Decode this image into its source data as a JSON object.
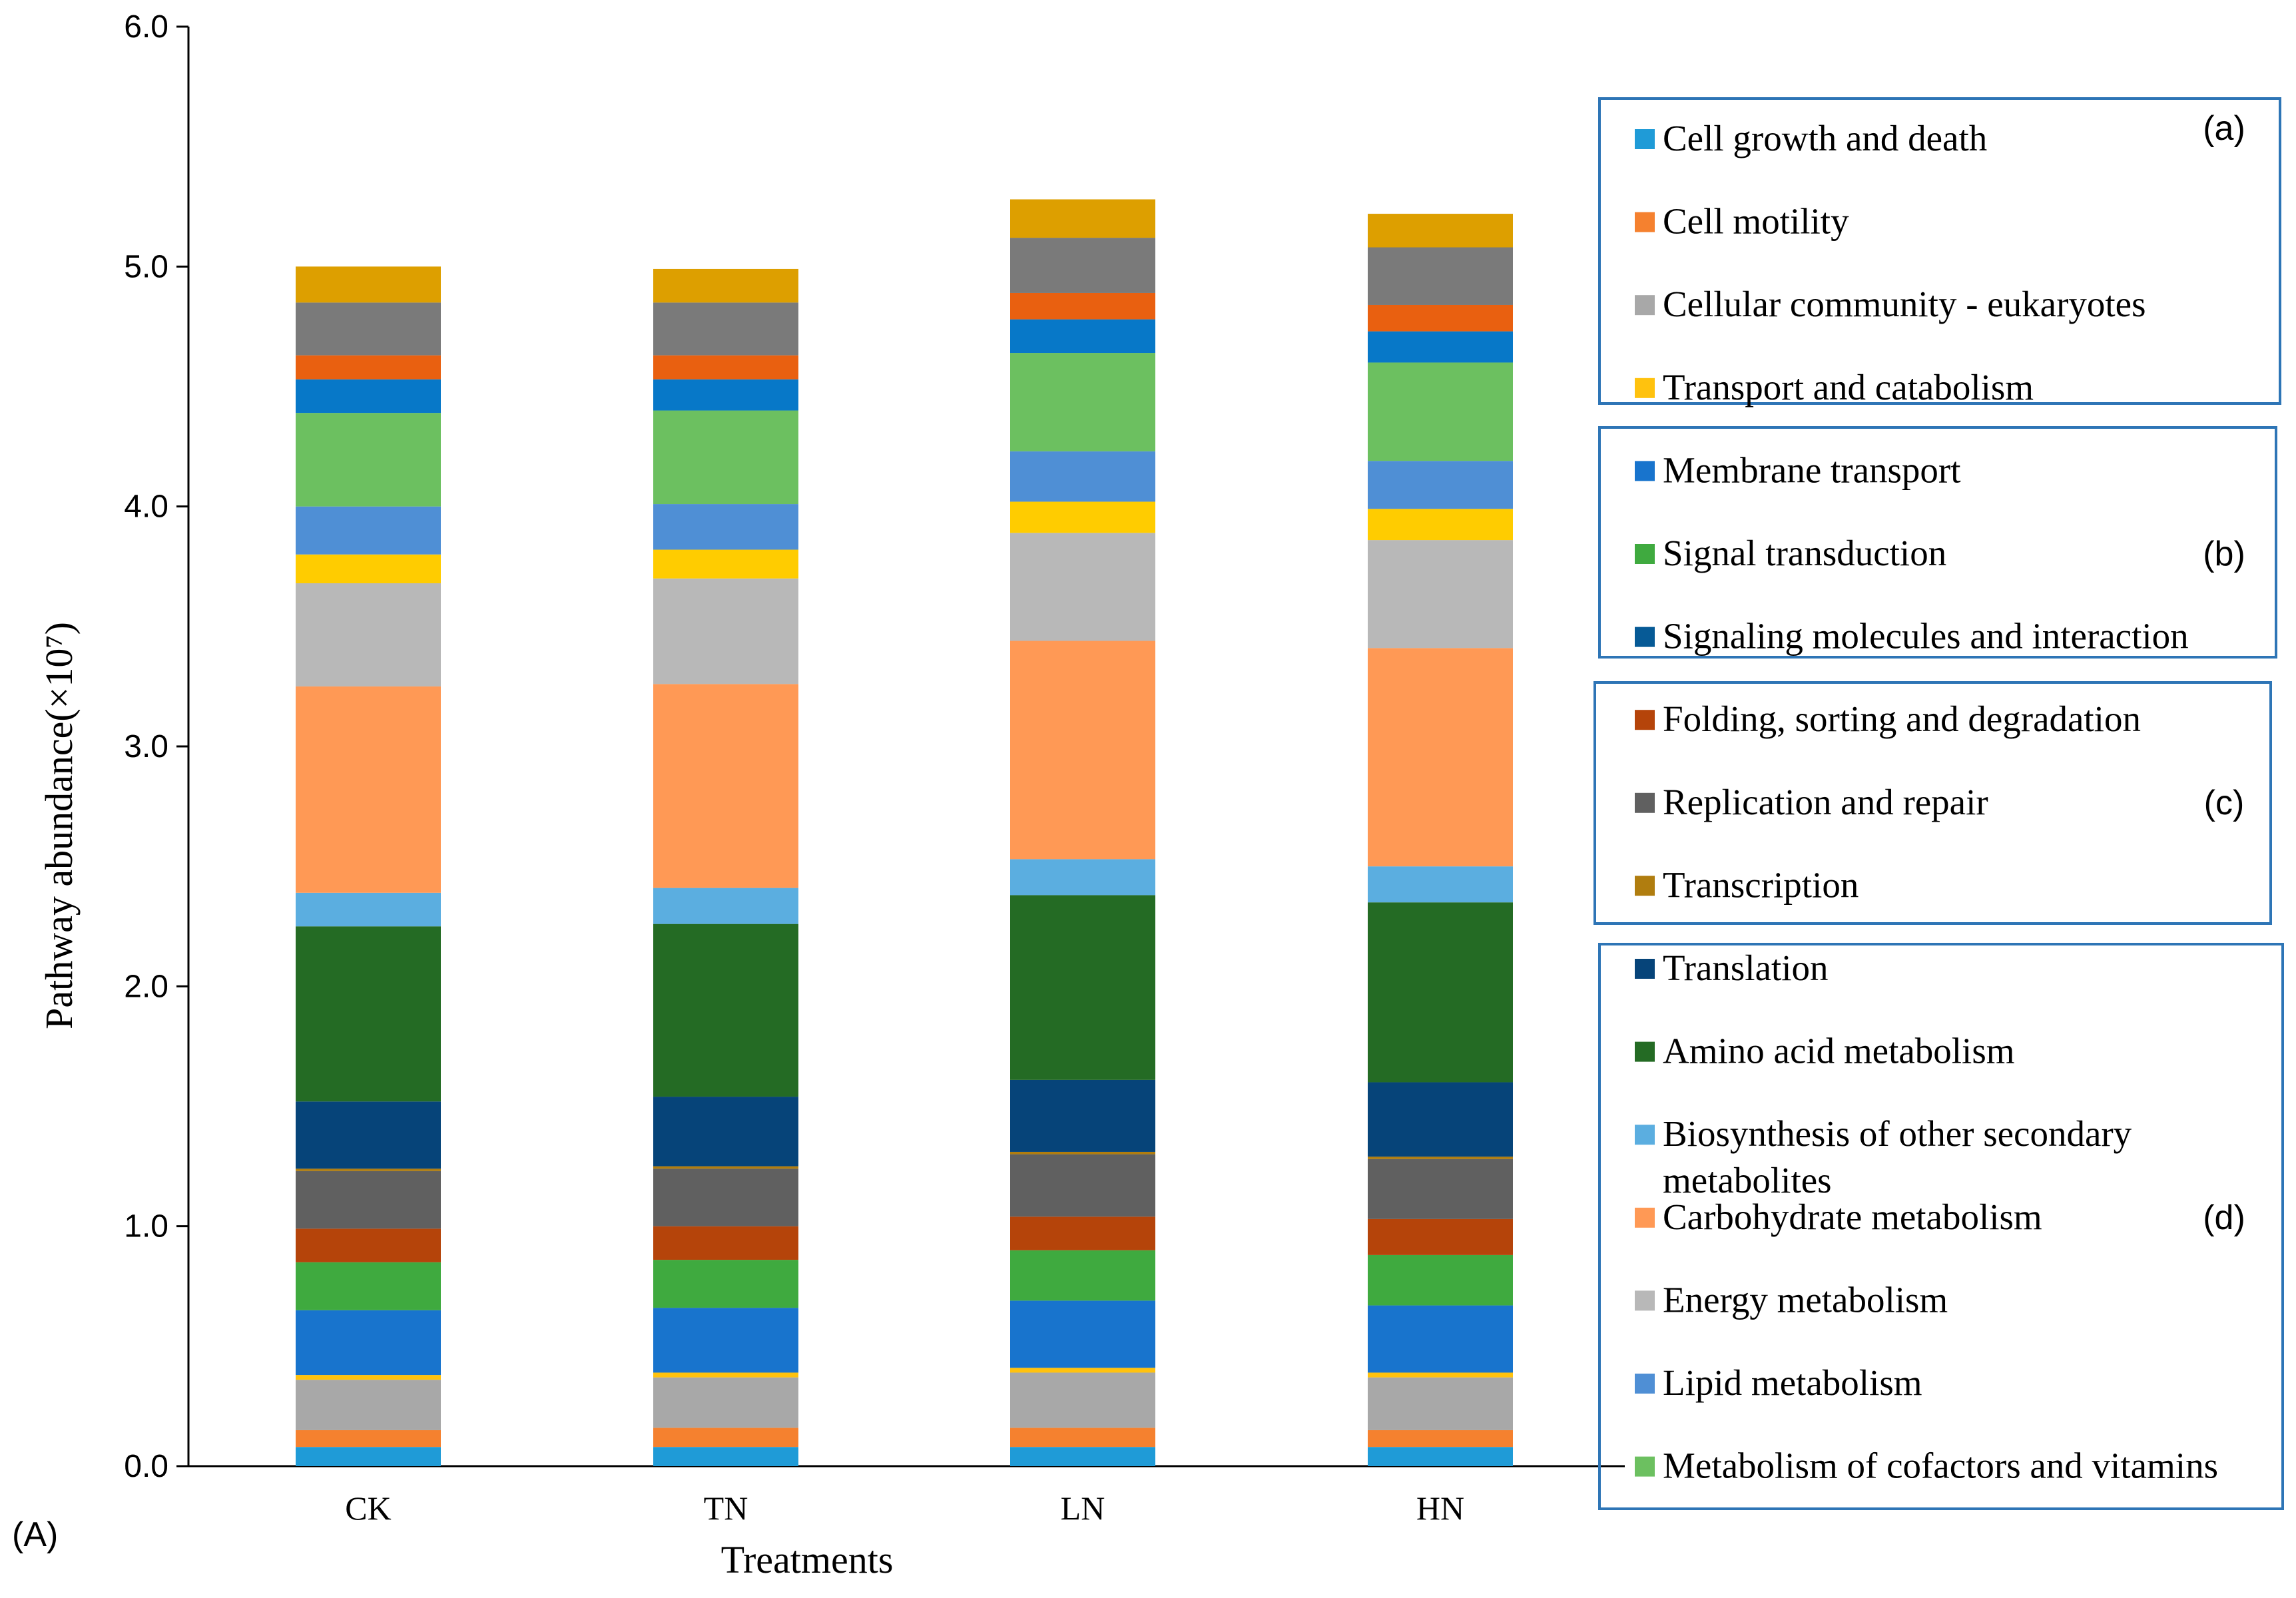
{
  "chart_data": {
    "type": "stacked-bar",
    "panel_label": "(A)",
    "xlabel": "Treatments",
    "ylabel": "Pathway  abundance(×10⁷)",
    "ylim": [
      0,
      6
    ],
    "yticks": [
      "0.0",
      "1.0",
      "2.0",
      "3.0",
      "4.0",
      "5.0",
      "6.0"
    ],
    "categories": [
      "CK",
      "TN",
      "LN",
      "HN"
    ],
    "series": [
      {
        "name": "Cell growth and death",
        "color": "#1F9BD7",
        "values": [
          0.08,
          0.08,
          0.08,
          0.08
        ]
      },
      {
        "name": "Cell motility",
        "color": "#F5812F",
        "values": [
          0.07,
          0.08,
          0.08,
          0.07
        ]
      },
      {
        "name": "Cellular community - eukaryotes",
        "color": "#A8A8A8",
        "values": [
          0.21,
          0.21,
          0.23,
          0.22
        ]
      },
      {
        "name": "Transport and catabolism",
        "color": "#FFC20E",
        "values": [
          0.02,
          0.02,
          0.02,
          0.02
        ]
      },
      {
        "name": "Membrane transport",
        "color": "#1874CD",
        "values": [
          0.27,
          0.27,
          0.28,
          0.28
        ]
      },
      {
        "name": "Signal transduction",
        "color": "#3FAA3F",
        "values": [
          0.2,
          0.2,
          0.21,
          0.21
        ]
      },
      {
        "name": "Signaling molecules and interaction",
        "color": "#065A96",
        "values": [
          0.0,
          0.0,
          0.0,
          0.0
        ]
      },
      {
        "name": "Folding, sorting and degradation",
        "color": "#B5440A",
        "values": [
          0.14,
          0.14,
          0.14,
          0.15
        ]
      },
      {
        "name": "Replication and repair",
        "color": "#606060",
        "values": [
          0.24,
          0.24,
          0.26,
          0.25
        ]
      },
      {
        "name": "Transcription",
        "color": "#B07D0F",
        "values": [
          0.01,
          0.01,
          0.01,
          0.01
        ]
      },
      {
        "name": "Translation",
        "color": "#064479",
        "values": [
          0.28,
          0.29,
          0.3,
          0.31
        ]
      },
      {
        "name": "Amino acid metabolism",
        "color": "#246B24",
        "values": [
          0.73,
          0.72,
          0.77,
          0.75
        ]
      },
      {
        "name": "Biosynthesis of other secondary metabolites",
        "color": "#5BAEE0",
        "values": [
          0.14,
          0.15,
          0.15,
          0.15
        ]
      },
      {
        "name": "Carbohydrate metabolism",
        "color": "#FF9955",
        "values": [
          0.86,
          0.85,
          0.91,
          0.91
        ]
      },
      {
        "name": "Energy metabolism",
        "color": "#B8B8B8",
        "values": [
          0.43,
          0.44,
          0.45,
          0.45
        ]
      },
      {
        "name": "Transport and catabolism",
        "color": "#FFCC00",
        "values": [
          0.12,
          0.12,
          0.13,
          0.13
        ]
      },
      {
        "name": "Lipid metabolism",
        "color": "#4F8FD5",
        "values": [
          0.2,
          0.19,
          0.21,
          0.2
        ]
      },
      {
        "name": "Metabolism of cofactors and vitamins",
        "color": "#6CC060",
        "values": [
          0.39,
          0.39,
          0.41,
          0.41
        ]
      },
      {
        "name": "Membrane transport",
        "color": "#0778C8",
        "values": [
          0.14,
          0.13,
          0.14,
          0.13
        ]
      },
      {
        "name": "Folding, sorting and degradation",
        "color": "#E96010",
        "values": [
          0.1,
          0.1,
          0.11,
          0.11
        ]
      },
      {
        "name": "Replication and repair",
        "color": "#7A7A7A",
        "values": [
          0.22,
          0.22,
          0.23,
          0.24
        ]
      },
      {
        "name": "Transcription",
        "color": "#DD9F00",
        "values": [
          0.15,
          0.14,
          0.16,
          0.14
        ]
      }
    ],
    "legend_groups": [
      {
        "tag": "(a)",
        "items": [
          {
            "name": "Cell growth and death",
            "color": "#1F9BD7"
          },
          {
            "name": "Cell motility",
            "color": "#F5812F"
          },
          {
            "name": "Cellular community - eukaryotes",
            "color": "#A8A8A8"
          },
          {
            "name": "Transport and catabolism",
            "color": "#FFC20E"
          }
        ]
      },
      {
        "tag": "(b)",
        "items": [
          {
            "name": "Membrane transport",
            "color": "#1874CD"
          },
          {
            "name": "Signal transduction",
            "color": "#3FAA3F"
          },
          {
            "name": "Signaling molecules and interaction",
            "color": "#065A96"
          }
        ]
      },
      {
        "tag": "(c)",
        "items": [
          {
            "name": "Folding, sorting and degradation",
            "color": "#B5440A"
          },
          {
            "name": "Replication and repair",
            "color": "#606060"
          },
          {
            "name": "Transcription",
            "color": "#B07D0F"
          }
        ]
      },
      {
        "tag": "(d)",
        "items": [
          {
            "name": "Translation",
            "color": "#064479"
          },
          {
            "name": "Amino acid metabolism",
            "color": "#246B24"
          },
          {
            "name": "Biosynthesis of other secondary metabolites",
            "color": "#5BAEE0"
          },
          {
            "name": "Carbohydrate metabolism",
            "color": "#FF9955"
          },
          {
            "name": "Energy metabolism",
            "color": "#B8B8B8"
          },
          {
            "name": "Lipid metabolism",
            "color": "#4F8FD5"
          },
          {
            "name": "Metabolism of cofactors and vitamins",
            "color": "#6CC060"
          }
        ]
      }
    ]
  }
}
